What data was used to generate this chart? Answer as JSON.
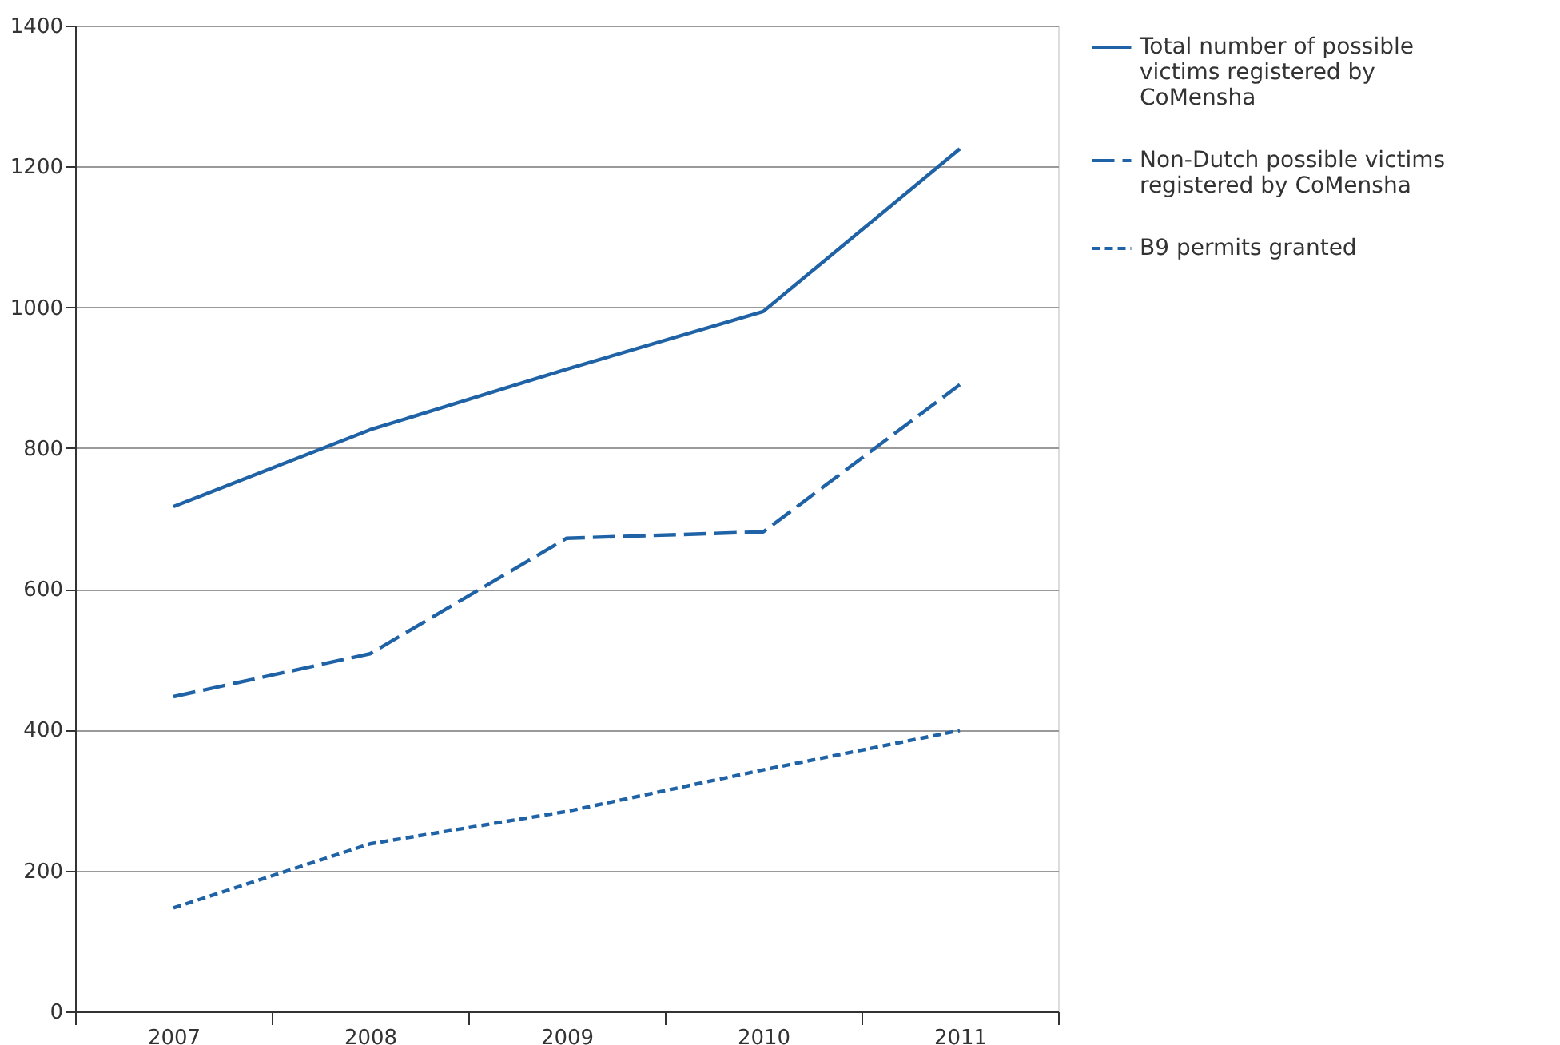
{
  "chart_data": {
    "type": "line",
    "categories": [
      "2007",
      "2008",
      "2009",
      "2010",
      "2011"
    ],
    "series": [
      {
        "name": "Total number of possible victims registered by CoMensha",
        "color": "#1f63a6",
        "line_style": "solid",
        "values": [
          717,
          826,
          912,
          994,
          1225
        ]
      },
      {
        "name": "Non-Dutch possible victims registered by CoMensha",
        "color": "#1f63a6",
        "line_style": "dashed",
        "values": [
          447,
          508,
          672,
          681,
          890
        ]
      },
      {
        "name": "B9 permits granted",
        "color": "#1f63a6",
        "line_style": "dotted",
        "values": [
          147,
          238,
          284,
          343,
          399
        ]
      }
    ],
    "ylim": [
      0,
      1400
    ],
    "yticks": [
      0,
      200,
      400,
      600,
      800,
      1000,
      1200,
      1400
    ],
    "grid": "y",
    "legend": "right",
    "marker": "none"
  }
}
